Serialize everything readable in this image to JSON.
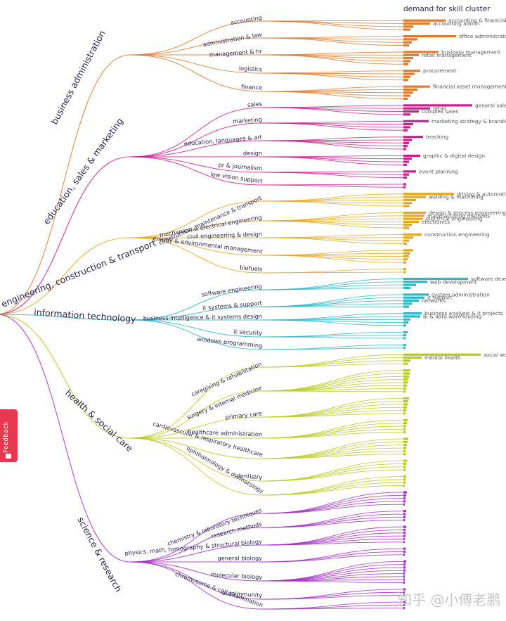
{
  "header": {
    "title": "demand for skill cluster"
  },
  "feedback": {
    "label": "Feedback",
    "icon": "feedback-icon"
  },
  "watermark": {
    "text": "知乎 @小傅老鹏"
  },
  "tree": {
    "groups": [
      {
        "name": "business administration",
        "color": "#e07a2c",
        "subs": [
          {
            "name": "accounting",
            "leaves": 4,
            "bars": [
              60,
              38,
              14,
              10
            ],
            "clusters": [
              "accounting & financial management",
              "accounting admin"
            ]
          },
          {
            "name": "administration & law",
            "leaves": 4,
            "bars": [
              75,
              20,
              12,
              8
            ],
            "clusters": [
              "office administration"
            ]
          },
          {
            "name": "management & hr",
            "leaves": 5,
            "bars": [
              50,
              22,
              14,
              10,
              7
            ],
            "clusters": [
              "business management",
              "retail management"
            ]
          },
          {
            "name": "logistics",
            "leaves": 4,
            "bars": [
              24,
              16,
              10,
              7
            ],
            "clusters": [
              "procurement"
            ]
          },
          {
            "name": "finance",
            "leaves": 5,
            "bars": [
              38,
              20,
              14,
              10,
              6
            ],
            "clusters": [
              "financial asset management"
            ]
          }
        ]
      },
      {
        "name": "education, sales & marketing",
        "color": "#cf1c8f",
        "subs": [
          {
            "name": "sales",
            "leaves": 4,
            "bars": [
              98,
              38,
              22,
              10
            ],
            "clusters": [
              "general sales",
              "retail",
              "complex sales"
            ]
          },
          {
            "name": "marketing",
            "leaves": 4,
            "bars": [
              36,
              14,
              10,
              6
            ],
            "clusters": [
              "marketing strategy & branding"
            ]
          },
          {
            "name": "education, languages & art",
            "leaves": 5,
            "bars": [
              28,
              12,
              8,
              6,
              4
            ],
            "clusters": [
              "teaching"
            ]
          },
          {
            "name": "design",
            "leaves": 4,
            "bars": [
              24,
              12,
              8,
              5
            ],
            "clusters": [
              "graphic & digital design"
            ]
          },
          {
            "name": "pr & journalism",
            "leaves": 3,
            "bars": [
              18,
              8,
              5
            ],
            "clusters": [
              "event planning"
            ]
          },
          {
            "name": "low vision support",
            "leaves": 2,
            "bars": [
              4,
              3
            ],
            "clusters": []
          }
        ]
      },
      {
        "name": "engineering, construction & transport",
        "color": "#e8a81e",
        "subs": [
          {
            "name": "construction, maintenance & transport",
            "leaves": 5,
            "bars": [
              72,
              32,
              18,
              12,
              8
            ],
            "clusters": [
              "driving & automotive maintenance",
              "welding & machining"
            ]
          },
          {
            "name": "mechanical & electrical engineering",
            "leaves": 6,
            "bars": [
              32,
              30,
              28,
              22,
              12,
              8
            ],
            "clusters": [
              "design & process engineering",
              "manufacturing methods",
              "electrical engineering",
              "electronics"
            ]
          },
          {
            "name": "civil engineering & design",
            "leaves": 4,
            "bars": [
              26,
              14,
              8,
              5
            ],
            "clusters": [
              "construction engineering"
            ]
          },
          {
            "name": "energy & environmental management",
            "leaves": 5,
            "bars": [
              14,
              10,
              8,
              6,
              4
            ],
            "clusters": []
          },
          {
            "name": "biofuels",
            "leaves": 2,
            "bars": [
              4,
              3
            ],
            "clusters": []
          }
        ]
      },
      {
        "name": "information technology",
        "color": "#2cb8c4",
        "subs": [
          {
            "name": "software engineering",
            "leaves": 4,
            "bars": [
              92,
              34,
              18,
              10
            ],
            "clusters": [
              "software development",
              "web development"
            ]
          },
          {
            "name": "it systems & support",
            "leaves": 5,
            "bars": [
              36,
              30,
              22,
              12,
              8
            ],
            "clusters": [
              "system administration",
              "it support",
              "networks"
            ]
          },
          {
            "name": "business intelligence & it systems design",
            "leaves": 5,
            "bars": [
              26,
              24,
              10,
              7,
              4
            ],
            "clusters": [
              "business analysis & it projects",
              "bi & data warehousing"
            ]
          },
          {
            "name": "it security",
            "leaves": 3,
            "bars": [
              6,
              4,
              3
            ],
            "clusters": []
          },
          {
            "name": "windows programming",
            "leaves": 2,
            "bars": [
              4,
              3
            ],
            "clusters": []
          }
        ]
      },
      {
        "name": "health & social care",
        "color": "#b8cc1e",
        "subs": [
          {
            "name": "caregiving & rehabilitation",
            "leaves": 4,
            "bars": [
              110,
              26,
              10,
              6
            ],
            "clusters": [
              "social work",
              "mental health"
            ]
          },
          {
            "name": "surgery & internal medicine",
            "leaves": 8,
            "bars": [
              10,
              9,
              8,
              7,
              6,
              5,
              4,
              3
            ],
            "clusters": []
          },
          {
            "name": "primary care",
            "leaves": 6,
            "bars": [
              8,
              7,
              6,
              5,
              4,
              3
            ],
            "clusters": []
          },
          {
            "name": "healthcare administration",
            "leaves": 5,
            "bars": [
              6,
              5,
              4,
              3,
              3
            ],
            "clusters": []
          },
          {
            "name": "cardiovascular & respiratory healthcare",
            "leaves": 6,
            "bars": [
              7,
              6,
              5,
              4,
              3,
              3
            ],
            "clusters": []
          },
          {
            "name": "dentistry",
            "leaves": 4,
            "bars": [
              5,
              4,
              3,
              3
            ],
            "clusters": []
          },
          {
            "name": "ophthalmology & dermatology",
            "leaves": 4,
            "bars": [
              4,
              3,
              3,
              2
            ],
            "clusters": []
          }
        ]
      },
      {
        "name": "science & research",
        "color": "#a32cc4",
        "subs": [
          {
            "name": "chemistry & laboratory techniques",
            "leaves": 5,
            "bars": [
              5,
              4,
              3,
              3,
              2
            ],
            "clusters": []
          },
          {
            "name": "research methods",
            "leaves": 4,
            "bars": [
              4,
              3,
              3,
              2
            ],
            "clusters": []
          },
          {
            "name": "physics, math, tomography & structural biology",
            "leaves": 6,
            "bars": [
              4,
              3,
              3,
              3,
              2,
              2
            ],
            "clusters": []
          },
          {
            "name": "general biology",
            "leaves": 3,
            "bars": [
              3,
              3,
              2
            ],
            "clusters": []
          },
          {
            "name": "molecular biology",
            "leaves": 8,
            "bars": [
              4,
              3,
              3,
              3,
              2,
              2,
              2,
              2
            ],
            "clusters": []
          },
          {
            "name": "autoimmunity",
            "leaves": 3,
            "bars": [
              3,
              2,
              2
            ],
            "clusters": []
          },
          {
            "name": "chromosome & cell examination",
            "leaves": 3,
            "bars": [
              3,
              2,
              2
            ],
            "clusters": []
          }
        ]
      }
    ]
  }
}
